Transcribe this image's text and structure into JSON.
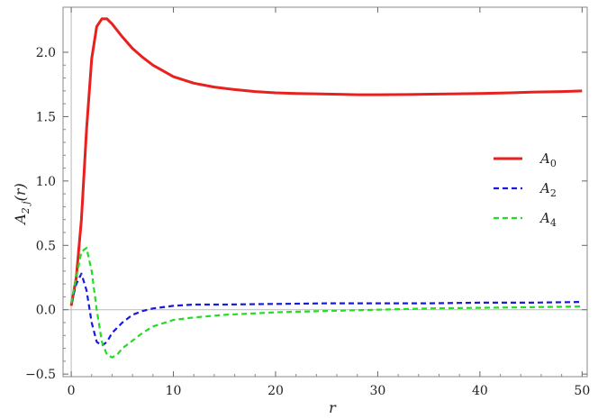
{
  "chart_data": {
    "type": "line",
    "xlabel": "r",
    "ylabel": "A",
    "ylabel_sub": "2 j",
    "ylabel_arg": "(r)",
    "xlim": [
      -0.8,
      50.5
    ],
    "ylim": [
      -0.52,
      2.35
    ],
    "xticks": [
      0,
      10,
      20,
      30,
      40,
      50
    ],
    "xtick_labels": [
      "0",
      "10",
      "20",
      "30",
      "40",
      "50"
    ],
    "yticks": [
      -0.5,
      0.0,
      0.5,
      1.0,
      1.5,
      2.0
    ],
    "ytick_labels": [
      "−0.5",
      "0.0",
      "0.5",
      "1.0",
      "1.5",
      "2.0"
    ],
    "grid": false,
    "legend_position": "right",
    "series": [
      {
        "name": "A",
        "name_sub": "0",
        "color": "#e8201e",
        "style": "solid",
        "x": [
          0,
          0.5,
          1,
          1.5,
          2,
          2.5,
          3,
          3.5,
          4,
          5,
          6,
          7,
          8,
          10,
          12,
          14,
          16,
          18,
          20,
          22,
          25,
          28,
          30,
          33,
          36,
          40,
          43,
          45,
          48,
          50
        ],
        "y": [
          0.03,
          0.25,
          0.7,
          1.4,
          1.95,
          2.2,
          2.26,
          2.26,
          2.22,
          2.12,
          2.03,
          1.96,
          1.9,
          1.81,
          1.76,
          1.73,
          1.71,
          1.695,
          1.685,
          1.68,
          1.675,
          1.67,
          1.67,
          1.672,
          1.675,
          1.68,
          1.685,
          1.69,
          1.695,
          1.7
        ]
      },
      {
        "name": "A",
        "name_sub": "2",
        "color": "#1a1adf",
        "style": "dashed",
        "x": [
          0,
          0.5,
          1,
          1.5,
          2,
          2.5,
          3,
          3.5,
          4,
          5,
          6,
          7,
          8,
          9,
          10,
          12,
          15,
          20,
          25,
          30,
          35,
          40,
          45,
          50
        ],
        "y": [
          0.05,
          0.2,
          0.28,
          0.15,
          -0.1,
          -0.25,
          -0.28,
          -0.25,
          -0.18,
          -0.1,
          -0.04,
          -0.01,
          0.01,
          0.02,
          0.03,
          0.04,
          0.04,
          0.045,
          0.05,
          0.05,
          0.05,
          0.055,
          0.055,
          0.06
        ]
      },
      {
        "name": "A",
        "name_sub": "4",
        "color": "#22dd22",
        "style": "dashed",
        "x": [
          0,
          0.5,
          1,
          1.5,
          2,
          2.5,
          3,
          3.5,
          4,
          4.5,
          5,
          6,
          7,
          8,
          10,
          12,
          15,
          20,
          25,
          30,
          35,
          40,
          45,
          50
        ],
        "y": [
          0.05,
          0.25,
          0.45,
          0.48,
          0.3,
          0.0,
          -0.25,
          -0.35,
          -0.37,
          -0.35,
          -0.3,
          -0.24,
          -0.18,
          -0.13,
          -0.08,
          -0.06,
          -0.04,
          -0.02,
          -0.01,
          0.0,
          0.01,
          0.015,
          0.02,
          0.025
        ]
      }
    ]
  }
}
